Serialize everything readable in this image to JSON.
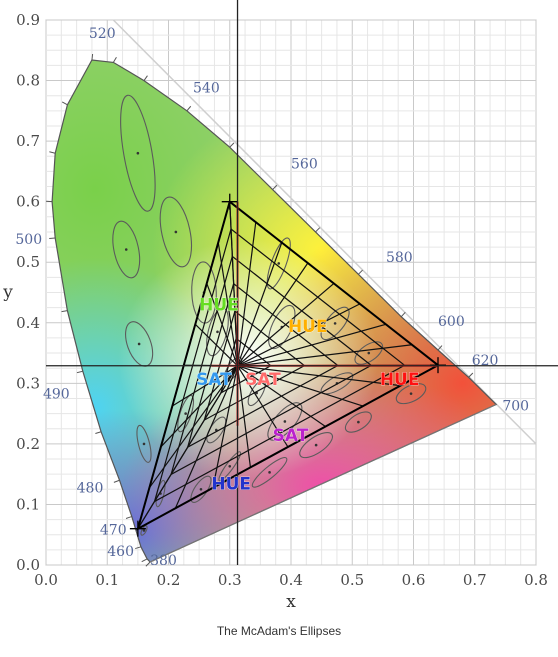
{
  "caption": "The McAdam's Ellipses",
  "chart_data": {
    "type": "scatter",
    "xlabel": "x",
    "ylabel": "y",
    "xlim": [
      0.0,
      0.8
    ],
    "ylim": [
      0.0,
      0.9
    ],
    "x_ticks": [
      "0.0",
      "0.1",
      "0.2",
      "0.3",
      "0.4",
      "0.5",
      "0.6",
      "0.7",
      "0.8"
    ],
    "y_ticks": [
      "0.0",
      "0.1",
      "0.2",
      "0.3",
      "0.4",
      "0.5",
      "0.6",
      "0.7",
      "0.8",
      "0.9"
    ],
    "grid": true,
    "spectral_locus": [
      [
        0.17,
        0.005
      ],
      [
        0.165,
        0.01
      ],
      [
        0.155,
        0.03
      ],
      [
        0.14,
        0.08
      ],
      [
        0.12,
        0.14
      ],
      [
        0.09,
        0.22
      ],
      [
        0.06,
        0.32
      ],
      [
        0.035,
        0.42
      ],
      [
        0.015,
        0.54
      ],
      [
        0.01,
        0.6
      ],
      [
        0.015,
        0.68
      ],
      [
        0.035,
        0.76
      ],
      [
        0.075,
        0.834
      ],
      [
        0.11,
        0.83
      ],
      [
        0.16,
        0.8
      ],
      [
        0.23,
        0.75
      ],
      [
        0.3,
        0.69
      ],
      [
        0.37,
        0.62
      ],
      [
        0.44,
        0.55
      ],
      [
        0.51,
        0.48
      ],
      [
        0.58,
        0.41
      ],
      [
        0.64,
        0.355
      ],
      [
        0.69,
        0.31
      ],
      [
        0.735,
        0.265
      ]
    ],
    "purple_line": [
      [
        0.735,
        0.265
      ],
      [
        0.17,
        0.005
      ]
    ],
    "wavelength_labels": [
      {
        "text": "380",
        "x": 0.17,
        "y": 0.0
      },
      {
        "text": "460",
        "x": 0.1,
        "y": 0.015
      },
      {
        "text": "470",
        "x": 0.088,
        "y": 0.05
      },
      {
        "text": "480",
        "x": 0.05,
        "y": 0.12
      },
      {
        "text": "490",
        "x": -0.005,
        "y": 0.275
      },
      {
        "text": "500",
        "x": -0.05,
        "y": 0.53
      },
      {
        "text": "520",
        "x": 0.07,
        "y": 0.87
      },
      {
        "text": "540",
        "x": 0.24,
        "y": 0.78
      },
      {
        "text": "560",
        "x": 0.4,
        "y": 0.655
      },
      {
        "text": "580",
        "x": 0.555,
        "y": 0.5
      },
      {
        "text": "600",
        "x": 0.64,
        "y": 0.395
      },
      {
        "text": "620",
        "x": 0.695,
        "y": 0.33
      },
      {
        "text": "700",
        "x": 0.745,
        "y": 0.255
      }
    ],
    "white_point": {
      "x": 0.3127,
      "y": 0.329
    },
    "gamut_triangle": [
      [
        0.64,
        0.33
      ],
      [
        0.3,
        0.6
      ],
      [
        0.15,
        0.06
      ]
    ],
    "macadam_ellipses": [
      {
        "x": 0.16,
        "y": 0.057,
        "a": 0.0085,
        "b": 0.0035,
        "angle": 62.5
      },
      {
        "x": 0.187,
        "y": 0.118,
        "a": 0.022,
        "b": 0.0055,
        "angle": 77.0
      },
      {
        "x": 0.253,
        "y": 0.125,
        "a": 0.025,
        "b": 0.01,
        "angle": 55.5
      },
      {
        "x": 0.15,
        "y": 0.68,
        "a": 0.096,
        "b": 0.023,
        "angle": 100.0
      },
      {
        "x": 0.131,
        "y": 0.521,
        "a": 0.047,
        "b": 0.02,
        "angle": 102.0
      },
      {
        "x": 0.212,
        "y": 0.55,
        "a": 0.058,
        "b": 0.023,
        "angle": 102.0
      },
      {
        "x": 0.258,
        "y": 0.45,
        "a": 0.05,
        "b": 0.02,
        "angle": 92.0
      },
      {
        "x": 0.152,
        "y": 0.365,
        "a": 0.038,
        "b": 0.019,
        "angle": 110.0
      },
      {
        "x": 0.28,
        "y": 0.385,
        "a": 0.04,
        "b": 0.015,
        "angle": 75.5
      },
      {
        "x": 0.38,
        "y": 0.498,
        "a": 0.044,
        "b": 0.012,
        "angle": 70.0
      },
      {
        "x": 0.16,
        "y": 0.2,
        "a": 0.031,
        "b": 0.009,
        "angle": 104.0
      },
      {
        "x": 0.228,
        "y": 0.25,
        "a": 0.031,
        "b": 0.009,
        "angle": 72.0
      },
      {
        "x": 0.305,
        "y": 0.323,
        "a": 0.023,
        "b": 0.009,
        "angle": 58.0
      },
      {
        "x": 0.385,
        "y": 0.393,
        "a": 0.038,
        "b": 0.016,
        "angle": 65.5
      },
      {
        "x": 0.472,
        "y": 0.399,
        "a": 0.032,
        "b": 0.014,
        "angle": 51.0
      },
      {
        "x": 0.527,
        "y": 0.35,
        "a": 0.026,
        "b": 0.013,
        "angle": 35.0
      },
      {
        "x": 0.475,
        "y": 0.3,
        "a": 0.029,
        "b": 0.011,
        "angle": 29.5
      },
      {
        "x": 0.51,
        "y": 0.236,
        "a": 0.024,
        "b": 0.012,
        "angle": 33.0
      },
      {
        "x": 0.596,
        "y": 0.283,
        "a": 0.026,
        "b": 0.013,
        "angle": 26.0
      },
      {
        "x": 0.344,
        "y": 0.284,
        "a": 0.023,
        "b": 0.009,
        "angle": 60.0
      },
      {
        "x": 0.39,
        "y": 0.237,
        "a": 0.038,
        "b": 0.016,
        "angle": 49.0
      },
      {
        "x": 0.441,
        "y": 0.198,
        "a": 0.031,
        "b": 0.013,
        "angle": 34.0
      },
      {
        "x": 0.278,
        "y": 0.223,
        "a": 0.024,
        "b": 0.01,
        "angle": 57.5
      },
      {
        "x": 0.3,
        "y": 0.163,
        "a": 0.029,
        "b": 0.006,
        "angle": 54.0
      },
      {
        "x": 0.365,
        "y": 0.153,
        "a": 0.036,
        "b": 0.009,
        "angle": 40.0
      }
    ],
    "annotations": [
      {
        "text": "HUE",
        "x": 0.25,
        "y": 0.42,
        "color": "#66dd22"
      },
      {
        "text": "HUE",
        "x": 0.395,
        "y": 0.385,
        "color": "#ffb000"
      },
      {
        "text": "SAT",
        "x": 0.245,
        "y": 0.297,
        "color": "#3399ee"
      },
      {
        "text": "SAT",
        "x": 0.325,
        "y": 0.297,
        "color": "#ff6a6a"
      },
      {
        "text": "HUE",
        "x": 0.545,
        "y": 0.297,
        "color": "#ff1111"
      },
      {
        "text": "SAT",
        "x": 0.37,
        "y": 0.205,
        "color": "#bb22cc"
      },
      {
        "text": "HUE",
        "x": 0.27,
        "y": 0.125,
        "color": "#2233cc"
      }
    ]
  }
}
